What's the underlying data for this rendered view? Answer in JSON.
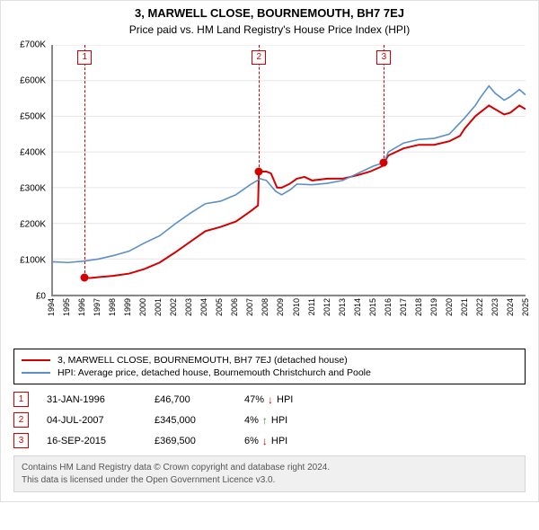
{
  "titles": {
    "address": "3, MARWELL CLOSE, BOURNEMOUTH, BH7 7EJ",
    "subtitle": "Price paid vs. HM Land Registry's House Price Index (HPI)"
  },
  "chart": {
    "type": "line",
    "background_color": "#ffffff",
    "grid_color": "#e6e6e6",
    "axis_color": "#888888",
    "x": {
      "years": [
        1994,
        1995,
        1996,
        1997,
        1998,
        1999,
        2000,
        2001,
        2002,
        2003,
        2004,
        2005,
        2006,
        2007,
        2008,
        2009,
        2010,
        2011,
        2012,
        2013,
        2014,
        2015,
        2016,
        2017,
        2018,
        2019,
        2020,
        2021,
        2022,
        2023,
        2024,
        2025
      ],
      "min": 1994,
      "max": 2025
    },
    "y": {
      "min": 0,
      "max": 700000,
      "tick_step": 100000,
      "tick_prefix": "£",
      "tick_suffix": "K",
      "ticks": [
        "£0",
        "£100K",
        "£200K",
        "£300K",
        "£400K",
        "£500K",
        "£600K",
        "£700K"
      ]
    },
    "series": [
      {
        "name": "property",
        "label": "3, MARWELL CLOSE, BOURNEMOUTH, BH7 7EJ (detached house)",
        "color": "#d40000",
        "line_width": 2,
        "points": [
          {
            "x": 1996.08,
            "y": 46700
          },
          {
            "x": 1996.5,
            "y": 47000
          },
          {
            "x": 1997,
            "y": 49000
          },
          {
            "x": 1998,
            "y": 53000
          },
          {
            "x": 1999,
            "y": 59000
          },
          {
            "x": 2000,
            "y": 72000
          },
          {
            "x": 2001,
            "y": 90000
          },
          {
            "x": 2002,
            "y": 118000
          },
          {
            "x": 2003,
            "y": 148000
          },
          {
            "x": 2004,
            "y": 178000
          },
          {
            "x": 2005,
            "y": 190000
          },
          {
            "x": 2006,
            "y": 205000
          },
          {
            "x": 2007,
            "y": 235000
          },
          {
            "x": 2007.45,
            "y": 250000
          },
          {
            "x": 2007.51,
            "y": 345000
          },
          {
            "x": 2008,
            "y": 345000
          },
          {
            "x": 2008.3,
            "y": 340000
          },
          {
            "x": 2008.7,
            "y": 300000
          },
          {
            "x": 2009,
            "y": 300000
          },
          {
            "x": 2009.5,
            "y": 310000
          },
          {
            "x": 2010,
            "y": 325000
          },
          {
            "x": 2010.5,
            "y": 330000
          },
          {
            "x": 2011,
            "y": 320000
          },
          {
            "x": 2012,
            "y": 325000
          },
          {
            "x": 2013,
            "y": 325000
          },
          {
            "x": 2014,
            "y": 335000
          },
          {
            "x": 2014.8,
            "y": 345000
          },
          {
            "x": 2015.6,
            "y": 360000
          },
          {
            "x": 2015.71,
            "y": 369500
          },
          {
            "x": 2016,
            "y": 390000
          },
          {
            "x": 2017,
            "y": 410000
          },
          {
            "x": 2018,
            "y": 420000
          },
          {
            "x": 2019,
            "y": 420000
          },
          {
            "x": 2020,
            "y": 430000
          },
          {
            "x": 2020.7,
            "y": 445000
          },
          {
            "x": 2021,
            "y": 465000
          },
          {
            "x": 2021.7,
            "y": 500000
          },
          {
            "x": 2022,
            "y": 510000
          },
          {
            "x": 2022.6,
            "y": 530000
          },
          {
            "x": 2023,
            "y": 520000
          },
          {
            "x": 2023.6,
            "y": 505000
          },
          {
            "x": 2024,
            "y": 510000
          },
          {
            "x": 2024.6,
            "y": 530000
          },
          {
            "x": 2025,
            "y": 520000
          }
        ]
      },
      {
        "name": "hpi",
        "label": "HPI: Average price, detached house, Bournemouth Christchurch and Poole",
        "color": "#5b8fc7",
        "line_width": 1.6,
        "points": [
          {
            "x": 1994,
            "y": 92000
          },
          {
            "x": 1995,
            "y": 90000
          },
          {
            "x": 1996,
            "y": 94000
          },
          {
            "x": 1997,
            "y": 100000
          },
          {
            "x": 1998,
            "y": 110000
          },
          {
            "x": 1999,
            "y": 122000
          },
          {
            "x": 2000,
            "y": 145000
          },
          {
            "x": 2001,
            "y": 165000
          },
          {
            "x": 2002,
            "y": 198000
          },
          {
            "x": 2003,
            "y": 228000
          },
          {
            "x": 2004,
            "y": 255000
          },
          {
            "x": 2005,
            "y": 262000
          },
          {
            "x": 2006,
            "y": 280000
          },
          {
            "x": 2007,
            "y": 310000
          },
          {
            "x": 2007.6,
            "y": 325000
          },
          {
            "x": 2008,
            "y": 320000
          },
          {
            "x": 2008.6,
            "y": 290000
          },
          {
            "x": 2009,
            "y": 280000
          },
          {
            "x": 2009.6,
            "y": 295000
          },
          {
            "x": 2010,
            "y": 310000
          },
          {
            "x": 2011,
            "y": 308000
          },
          {
            "x": 2012,
            "y": 312000
          },
          {
            "x": 2013,
            "y": 320000
          },
          {
            "x": 2014,
            "y": 340000
          },
          {
            "x": 2015,
            "y": 360000
          },
          {
            "x": 2015.71,
            "y": 370000
          },
          {
            "x": 2016,
            "y": 400000
          },
          {
            "x": 2017,
            "y": 425000
          },
          {
            "x": 2018,
            "y": 435000
          },
          {
            "x": 2019,
            "y": 438000
          },
          {
            "x": 2020,
            "y": 450000
          },
          {
            "x": 2021,
            "y": 495000
          },
          {
            "x": 2021.7,
            "y": 530000
          },
          {
            "x": 2022,
            "y": 550000
          },
          {
            "x": 2022.6,
            "y": 585000
          },
          {
            "x": 2023,
            "y": 565000
          },
          {
            "x": 2023.6,
            "y": 545000
          },
          {
            "x": 2024,
            "y": 555000
          },
          {
            "x": 2024.6,
            "y": 575000
          },
          {
            "x": 2025,
            "y": 560000
          }
        ]
      }
    ],
    "sale_markers": [
      {
        "n": "1",
        "x": 1996.08,
        "y": 46700,
        "label_top_offset": 6
      },
      {
        "n": "2",
        "x": 2007.51,
        "y": 345000,
        "label_top_offset": 6
      },
      {
        "n": "3",
        "x": 2015.71,
        "y": 369500,
        "label_top_offset": 6
      }
    ],
    "marker_box_border": "#d40000",
    "marker_box_text": "#d40000",
    "point_fill": "#d40000"
  },
  "legend": {
    "rows": [
      {
        "color": "#d40000",
        "text": "3, MARWELL CLOSE, BOURNEMOUTH, BH7 7EJ (detached house)"
      },
      {
        "color": "#5b8fc7",
        "text": "HPI: Average price, detached house, Bournemouth Christchurch and Poole"
      }
    ]
  },
  "events": [
    {
      "n": "1",
      "date": "31-JAN-1996",
      "price": "£46,700",
      "diff": "47%",
      "dir": "down",
      "dir_glyph": "↓",
      "suffix": "HPI"
    },
    {
      "n": "2",
      "date": "04-JUL-2007",
      "price": "£345,000",
      "diff": "4%",
      "dir": "up",
      "dir_glyph": "↑",
      "suffix": "HPI"
    },
    {
      "n": "3",
      "date": "16-SEP-2015",
      "price": "£369,500",
      "diff": "6%",
      "dir": "down",
      "dir_glyph": "↓",
      "suffix": "HPI"
    }
  ],
  "arrow_colors": {
    "up": "#2a8a2a",
    "down": "#d40000"
  },
  "footer": {
    "line1": "Contains HM Land Registry data © Crown copyright and database right 2024.",
    "line2": "This data is licensed under the Open Government Licence v3.0."
  }
}
